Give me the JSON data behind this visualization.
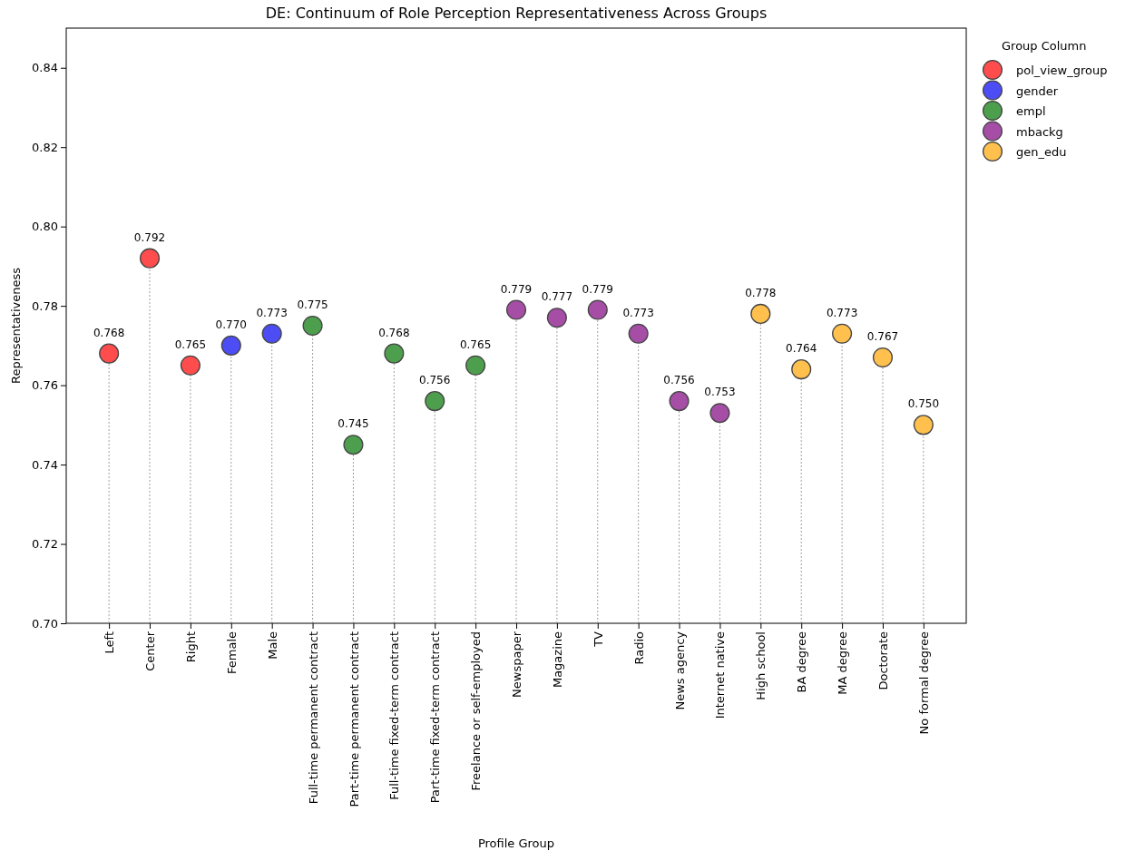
{
  "chart_data": {
    "type": "lollipop",
    "title": "DE: Continuum of Role Perception Representativeness Across Groups",
    "xlabel": "Profile Group",
    "ylabel": "Representativeness",
    "legend_title": "Group Column",
    "categories": [
      "Left",
      "Center",
      "Right",
      "Female",
      "Male",
      "Full-time permanent contract",
      "Part-time permanent contract",
      "Full-time fixed-term contract",
      "Part-time fixed-term contract",
      "Freelance or self-employed",
      "Newspaper",
      "Magazine",
      "TV",
      "Radio",
      "News agency",
      "Internet native",
      "High school",
      "BA degree",
      "MA degree",
      "Doctorate",
      "No formal degree"
    ],
    "series": [
      {
        "name": "pol_view_group",
        "color": "#ff4d4d",
        "values": [
          0.768,
          0.792,
          0.765,
          null,
          null,
          null,
          null,
          null,
          null,
          null,
          null,
          null,
          null,
          null,
          null,
          null,
          null,
          null,
          null,
          null,
          null
        ],
        "value_labels": [
          "0.768",
          "0.792",
          "0.765",
          null,
          null,
          null,
          null,
          null,
          null,
          null,
          null,
          null,
          null,
          null,
          null,
          null,
          null,
          null,
          null,
          null,
          null
        ]
      },
      {
        "name": "gender",
        "color": "#4d4df5",
        "values": [
          null,
          null,
          null,
          0.77,
          0.773,
          null,
          null,
          null,
          null,
          null,
          null,
          null,
          null,
          null,
          null,
          null,
          null,
          null,
          null,
          null,
          null
        ],
        "value_labels": [
          null,
          null,
          null,
          "0.770",
          "0.773",
          null,
          null,
          null,
          null,
          null,
          null,
          null,
          null,
          null,
          null,
          null,
          null,
          null,
          null,
          null,
          null
        ]
      },
      {
        "name": "empl",
        "color": "#4d9f4d",
        "values": [
          null,
          null,
          null,
          null,
          null,
          0.775,
          0.745,
          0.768,
          0.756,
          0.765,
          null,
          null,
          null,
          null,
          null,
          null,
          null,
          null,
          null,
          null,
          null
        ],
        "value_labels": [
          null,
          null,
          null,
          null,
          null,
          "0.775",
          "0.745",
          "0.768",
          "0.756",
          "0.765",
          null,
          null,
          null,
          null,
          null,
          null,
          null,
          null,
          null,
          null,
          null
        ]
      },
      {
        "name": "mbackg",
        "color": "#a64da6",
        "values": [
          null,
          null,
          null,
          null,
          null,
          null,
          null,
          null,
          null,
          null,
          0.779,
          0.777,
          0.779,
          0.773,
          0.756,
          0.753,
          null,
          null,
          null,
          null,
          null
        ],
        "value_labels": [
          null,
          null,
          null,
          null,
          null,
          null,
          null,
          null,
          null,
          null,
          "0.779",
          "0.777",
          "0.779",
          "0.773",
          "0.756",
          "0.753",
          null,
          null,
          null,
          null,
          null
        ]
      },
      {
        "name": "gen_edu",
        "color": "#ffc04d",
        "values": [
          null,
          null,
          null,
          null,
          null,
          null,
          null,
          null,
          null,
          null,
          null,
          null,
          null,
          null,
          null,
          null,
          0.778,
          0.764,
          0.773,
          0.767,
          0.75
        ],
        "value_labels": [
          null,
          null,
          null,
          null,
          null,
          null,
          null,
          null,
          null,
          null,
          null,
          null,
          null,
          null,
          null,
          null,
          "0.778",
          "0.764",
          "0.773",
          "0.767",
          "0.750"
        ]
      }
    ],
    "ylim": [
      0.7,
      0.85
    ],
    "yticks": [
      {
        "value": 0.7,
        "label": "0.70"
      },
      {
        "value": 0.72,
        "label": "0.72"
      },
      {
        "value": 0.74,
        "label": "0.74"
      },
      {
        "value": 0.76,
        "label": "0.76"
      },
      {
        "value": 0.78,
        "label": "0.78"
      },
      {
        "value": 0.8,
        "label": "0.80"
      },
      {
        "value": 0.82,
        "label": "0.82"
      },
      {
        "value": 0.84,
        "label": "0.84"
      }
    ],
    "legend": "top right",
    "marker": "circle",
    "line_style": "dotted"
  }
}
